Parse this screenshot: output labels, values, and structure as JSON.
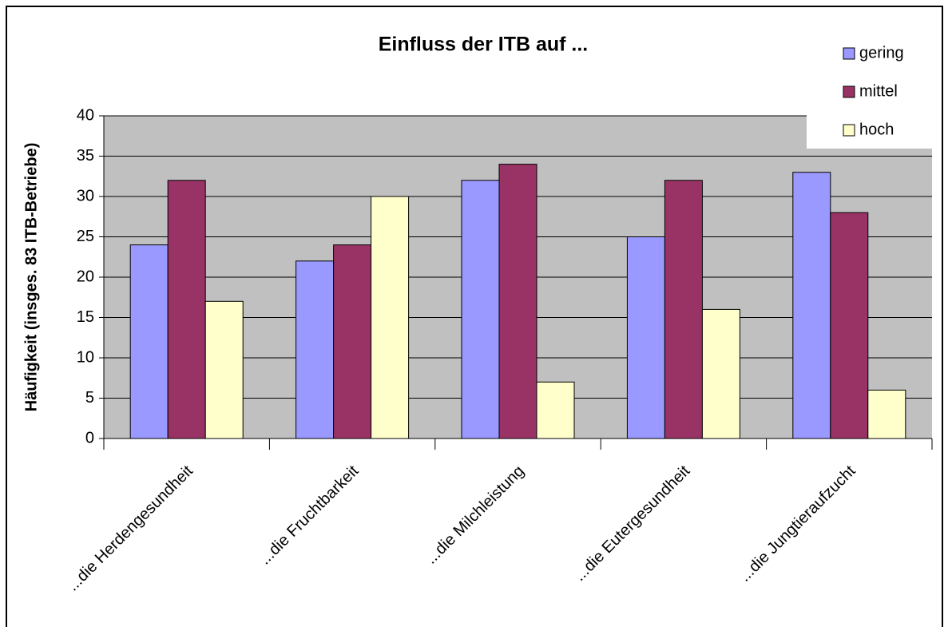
{
  "chart_data": {
    "type": "bar",
    "title": "Einfluss der ITB auf ...",
    "y_label": "Häufigkeit (insges. 83 ITB-Betriebe)",
    "categories": [
      "...die Herdengesundheit",
      "...die Fruchtbarkeit",
      "...die Milchleistung",
      "...die Eutergesundheit",
      "...die Jungtieraufzucht"
    ],
    "series": [
      {
        "name": "gering",
        "color": "#9999ff",
        "values": [
          24,
          22,
          32,
          25,
          33
        ]
      },
      {
        "name": "mittel",
        "color": "#993366",
        "values": [
          32,
          24,
          34,
          32,
          28
        ]
      },
      {
        "name": "hoch",
        "color": "#ffffcc",
        "values": [
          17,
          30,
          7,
          16,
          6
        ]
      }
    ],
    "ylim": [
      0,
      40
    ],
    "yticks": [
      0,
      5,
      10,
      15,
      20,
      25,
      30,
      35,
      40
    ],
    "grid": true,
    "legend": "top-right"
  }
}
